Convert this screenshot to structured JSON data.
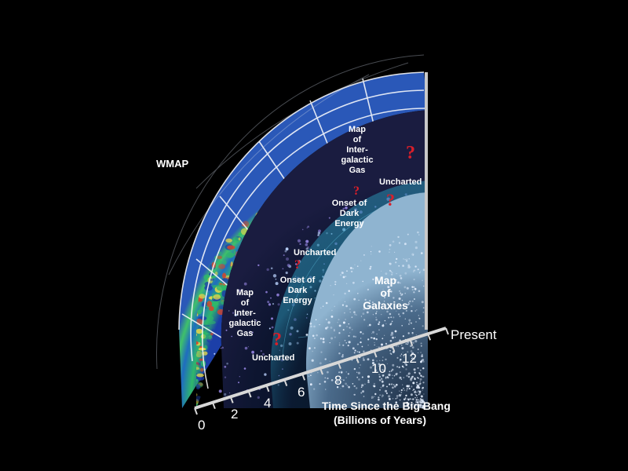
{
  "labels": {
    "wmap": "WMAP",
    "uncharted_left": "Uncharted",
    "uncharted_mid": "Uncharted",
    "uncharted_right": "Uncharted",
    "gas_left": [
      "Map",
      "of",
      "Inter-",
      "galactic",
      "Gas"
    ],
    "gas_right": [
      "Map",
      "of",
      "Inter-",
      "galactic",
      "Gas"
    ],
    "dark_energy_left": [
      "Onset of",
      "Dark",
      "Energy"
    ],
    "dark_energy_right": [
      "Onset of",
      "Dark",
      "Energy"
    ],
    "galaxies": [
      "Map",
      "of",
      "Galaxies"
    ],
    "question_mark": "?"
  },
  "axis": {
    "end_label": "Present",
    "ticks": [
      "0",
      "2",
      "4",
      "6",
      "8",
      "10",
      "12"
    ],
    "title_line1": "Time Since the Big Bang",
    "title_line2": "(Billions of Years)"
  },
  "colors": {
    "background": "#000000",
    "question_mark": "#d81f2a",
    "cmb_blue": "#1c3fa8",
    "cmb_green": "#2fb86a",
    "cmb_yellow": "#e7d84a",
    "cmb_red": "#d8432a",
    "galaxy_shell": "#2a8fb0",
    "text": "#ffffff"
  }
}
